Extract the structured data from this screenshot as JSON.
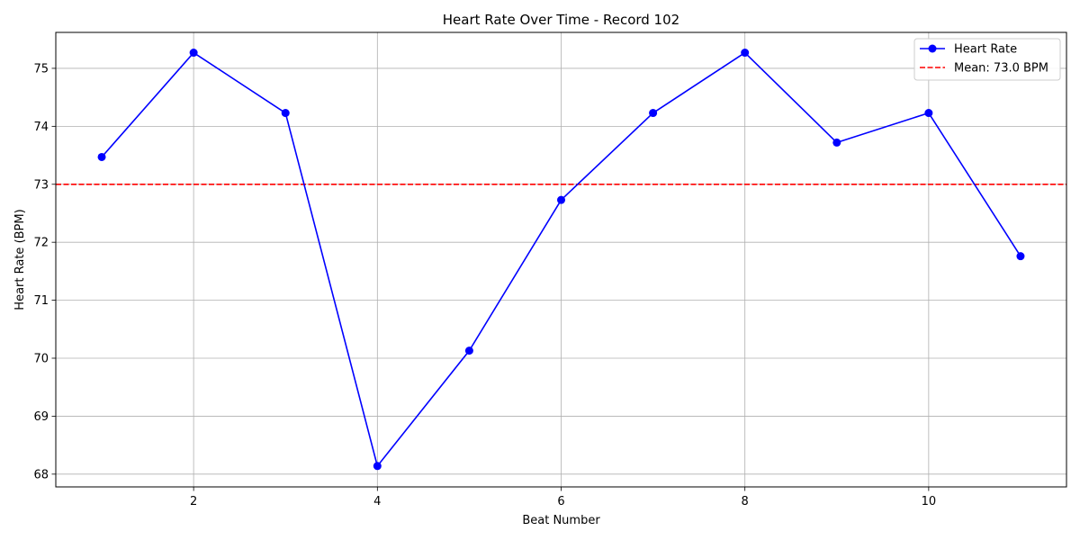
{
  "chart_data": {
    "type": "line",
    "title": "Heart Rate Over Time - Record 102",
    "xlabel": "Beat Number",
    "ylabel": "Heart Rate (BPM)",
    "x": [
      1,
      2,
      3,
      4,
      5,
      6,
      7,
      8,
      9,
      10,
      11
    ],
    "series": [
      {
        "name": "Heart Rate",
        "color": "#0000ff",
        "marker": "circle",
        "values": [
          73.47,
          75.27,
          74.23,
          68.14,
          70.13,
          72.73,
          74.23,
          75.27,
          73.72,
          74.23,
          71.76
        ]
      }
    ],
    "reference_lines": [
      {
        "name": "Mean: 73.0 BPM",
        "y": 73.0,
        "color": "#ff0000",
        "style": "dashed"
      }
    ],
    "xlim": [
      0.5,
      11.5
    ],
    "ylim": [
      67.78,
      75.62
    ],
    "xticks": [
      2,
      4,
      6,
      8,
      10
    ],
    "yticks": [
      68,
      69,
      70,
      71,
      72,
      73,
      74,
      75
    ],
    "grid": true,
    "legend_position": "top-right"
  }
}
